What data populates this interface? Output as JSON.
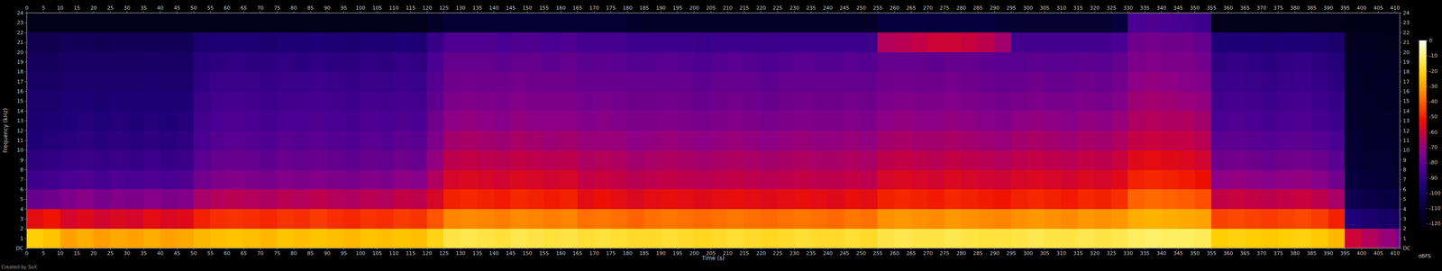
{
  "chart_data": {
    "type": "heatmap",
    "x_label": "Time (s)",
    "y_label": "Frequency (kHz)",
    "footer": "Created by SoX",
    "xlim": [
      0,
      411.5
    ],
    "ylim": [
      0,
      24
    ],
    "xticks": [
      0,
      5,
      10,
      15,
      20,
      25,
      30,
      35,
      40,
      45,
      50,
      55,
      60,
      65,
      70,
      75,
      80,
      85,
      90,
      95,
      100,
      105,
      110,
      115,
      120,
      125,
      130,
      135,
      140,
      145,
      150,
      155,
      160,
      165,
      170,
      175,
      180,
      185,
      190,
      195,
      200,
      205,
      210,
      215,
      220,
      225,
      230,
      235,
      240,
      245,
      250,
      255,
      260,
      265,
      270,
      275,
      280,
      285,
      290,
      295,
      300,
      305,
      310,
      315,
      320,
      325,
      330,
      335,
      340,
      345,
      350,
      355,
      360,
      365,
      370,
      375,
      380,
      385,
      390,
      395,
      400,
      405,
      410
    ],
    "yticks": [
      {
        "value": 0,
        "label": "DC"
      },
      1,
      2,
      3,
      4,
      5,
      6,
      7,
      8,
      9,
      10,
      11,
      12,
      13,
      14,
      15,
      16,
      17,
      18,
      19,
      20,
      21,
      22,
      23,
      24
    ],
    "grid": false,
    "x_edges": [
      0,
      5,
      10,
      15,
      20,
      25,
      30,
      35,
      40,
      45,
      50,
      55,
      60,
      65,
      70,
      75,
      80,
      85,
      90,
      95,
      100,
      105,
      110,
      115,
      120,
      125,
      130,
      135,
      140,
      145,
      150,
      155,
      160,
      165,
      170,
      175,
      180,
      185,
      190,
      195,
      200,
      205,
      210,
      215,
      220,
      225,
      230,
      235,
      240,
      245,
      250,
      255,
      260,
      265,
      270,
      275,
      280,
      285,
      290,
      295,
      300,
      305,
      310,
      315,
      320,
      325,
      330,
      335,
      340,
      345,
      350,
      355,
      360,
      365,
      370,
      375,
      380,
      385,
      390,
      395,
      400,
      405,
      410,
      415
    ],
    "y_edges": [
      0,
      2,
      4,
      6,
      8,
      10,
      12,
      14,
      16,
      18,
      20,
      22,
      24
    ],
    "cells": [
      [
        -22,
        -55,
        -80,
        -88,
        -92,
        -95,
        -97,
        -98,
        -100,
        -102,
        -105,
        -118
      ],
      [
        -24,
        -52,
        -78,
        -87,
        -91,
        -94,
        -96,
        -98,
        -100,
        -102,
        -105,
        -118
      ],
      [
        -30,
        -58,
        -75,
        -85,
        -90,
        -93,
        -95,
        -96,
        -98,
        -100,
        -103,
        -118
      ],
      [
        -28,
        -56,
        -73,
        -84,
        -89,
        -92,
        -94,
        -96,
        -98,
        -100,
        -103,
        -118
      ],
      [
        -31,
        -59,
        -76,
        -86,
        -90,
        -93,
        -95,
        -97,
        -98,
        -100,
        -104,
        -118
      ],
      [
        -29,
        -57,
        -74,
        -84,
        -89,
        -92,
        -94,
        -96,
        -98,
        -100,
        -103,
        -118
      ],
      [
        -30,
        -58,
        -75,
        -85,
        -90,
        -93,
        -95,
        -96,
        -98,
        -100,
        -103,
        -118
      ],
      [
        -28,
        -55,
        -73,
        -84,
        -88,
        -92,
        -94,
        -96,
        -97,
        -99,
        -103,
        -118
      ],
      [
        -30,
        -57,
        -75,
        -85,
        -90,
        -93,
        -95,
        -96,
        -98,
        -100,
        -103,
        -118
      ],
      [
        -29,
        -56,
        -74,
        -84,
        -89,
        -92,
        -94,
        -96,
        -98,
        -100,
        -103,
        -118
      ],
      [
        -26,
        -50,
        -67,
        -77,
        -82,
        -85,
        -87,
        -89,
        -91,
        -93,
        -97,
        -118
      ],
      [
        -25,
        -48,
        -65,
        -75,
        -80,
        -83,
        -85,
        -87,
        -89,
        -92,
        -96,
        -118
      ],
      [
        -24,
        -47,
        -64,
        -74,
        -79,
        -82,
        -84,
        -86,
        -89,
        -91,
        -96,
        -118
      ],
      [
        -25,
        -48,
        -65,
        -75,
        -80,
        -83,
        -85,
        -87,
        -89,
        -92,
        -96,
        -118
      ],
      [
        -26,
        -49,
        -66,
        -76,
        -81,
        -84,
        -86,
        -88,
        -90,
        -92,
        -97,
        -118
      ],
      [
        -24,
        -47,
        -64,
        -74,
        -79,
        -82,
        -85,
        -87,
        -89,
        -91,
        -96,
        -118
      ],
      [
        -25,
        -48,
        -65,
        -75,
        -80,
        -83,
        -85,
        -87,
        -89,
        -92,
        -96,
        -118
      ],
      [
        -24,
        -46,
        -63,
        -74,
        -79,
        -82,
        -84,
        -86,
        -88,
        -91,
        -95,
        -118
      ],
      [
        -25,
        -48,
        -65,
        -75,
        -80,
        -83,
        -85,
        -87,
        -89,
        -92,
        -96,
        -118
      ],
      [
        -26,
        -49,
        -66,
        -76,
        -81,
        -84,
        -86,
        -88,
        -90,
        -92,
        -97,
        -118
      ],
      [
        -24,
        -47,
        -64,
        -74,
        -79,
        -82,
        -84,
        -86,
        -89,
        -91,
        -96,
        -118
      ],
      [
        -25,
        -48,
        -65,
        -75,
        -80,
        -83,
        -85,
        -87,
        -89,
        -92,
        -96,
        -118
      ],
      [
        -24,
        -46,
        -62,
        -72,
        -78,
        -81,
        -84,
        -86,
        -88,
        -90,
        -95,
        -118
      ],
      [
        -25,
        -47,
        -63,
        -73,
        -79,
        -82,
        -85,
        -87,
        -89,
        -91,
        -96,
        -118
      ],
      [
        -20,
        -42,
        -58,
        -66,
        -71,
        -75,
        -78,
        -81,
        -83,
        -85,
        -90,
        -115
      ],
      [
        -15,
        -35,
        -50,
        -58,
        -63,
        -68,
        -72,
        -75,
        -78,
        -80,
        -84,
        -112
      ],
      [
        -14,
        -34,
        -49,
        -57,
        -62,
        -67,
        -71,
        -74,
        -77,
        -80,
        -84,
        -112
      ],
      [
        -15,
        -35,
        -50,
        -58,
        -63,
        -68,
        -72,
        -75,
        -78,
        -80,
        -84,
        -112
      ],
      [
        -16,
        -36,
        -51,
        -59,
        -64,
        -69,
        -73,
        -76,
        -78,
        -81,
        -85,
        -112
      ],
      [
        -14,
        -34,
        -49,
        -57,
        -62,
        -67,
        -71,
        -74,
        -77,
        -80,
        -84,
        -112
      ],
      [
        -15,
        -35,
        -50,
        -58,
        -63,
        -68,
        -72,
        -75,
        -78,
        -80,
        -84,
        -112
      ],
      [
        -16,
        -36,
        -51,
        -59,
        -64,
        -69,
        -72,
        -75,
        -78,
        -81,
        -85,
        -112
      ],
      [
        -15,
        -35,
        -50,
        -58,
        -63,
        -68,
        -72,
        -75,
        -78,
        -80,
        -84,
        -112
      ],
      [
        -17,
        -38,
        -55,
        -62,
        -66,
        -70,
        -74,
        -77,
        -79,
        -82,
        -86,
        -112
      ],
      [
        -16,
        -37,
        -53,
        -61,
        -65,
        -70,
        -73,
        -76,
        -79,
        -81,
        -86,
        -112
      ],
      [
        -17,
        -38,
        -55,
        -62,
        -66,
        -70,
        -74,
        -77,
        -79,
        -82,
        -86,
        -112
      ],
      [
        -18,
        -40,
        -57,
        -64,
        -68,
        -72,
        -75,
        -78,
        -80,
        -83,
        -88,
        -114
      ],
      [
        -18,
        -38,
        -55,
        -63,
        -67,
        -71,
        -75,
        -78,
        -80,
        -83,
        -88,
        -115
      ],
      [
        -17,
        -37,
        -54,
        -62,
        -66,
        -70,
        -74,
        -77,
        -80,
        -82,
        -88,
        -115
      ],
      [
        -18,
        -38,
        -55,
        -63,
        -67,
        -71,
        -75,
        -78,
        -80,
        -83,
        -88,
        -115
      ],
      [
        -19,
        -39,
        -56,
        -64,
        -68,
        -72,
        -76,
        -79,
        -81,
        -84,
        -89,
        -115
      ],
      [
        -18,
        -38,
        -55,
        -63,
        -67,
        -71,
        -75,
        -78,
        -80,
        -83,
        -88,
        -115
      ],
      [
        -17,
        -37,
        -54,
        -62,
        -66,
        -70,
        -74,
        -77,
        -80,
        -82,
        -88,
        -115
      ],
      [
        -18,
        -38,
        -55,
        -63,
        -67,
        -71,
        -75,
        -78,
        -80,
        -83,
        -88,
        -115
      ],
      [
        -19,
        -39,
        -56,
        -64,
        -68,
        -72,
        -76,
        -79,
        -81,
        -84,
        -89,
        -115
      ],
      [
        -18,
        -38,
        -55,
        -63,
        -67,
        -71,
        -75,
        -78,
        -80,
        -83,
        -88,
        -115
      ],
      [
        -17,
        -37,
        -54,
        -62,
        -66,
        -70,
        -74,
        -77,
        -80,
        -82,
        -88,
        -115
      ],
      [
        -18,
        -38,
        -55,
        -63,
        -67,
        -71,
        -75,
        -78,
        -80,
        -83,
        -88,
        -115
      ],
      [
        -18,
        -39,
        -56,
        -63,
        -67,
        -71,
        -75,
        -78,
        -80,
        -83,
        -88,
        -115
      ],
      [
        -17,
        -37,
        -54,
        -62,
        -66,
        -70,
        -74,
        -77,
        -80,
        -82,
        -88,
        -115
      ],
      [
        -18,
        -38,
        -55,
        -63,
        -67,
        -71,
        -75,
        -78,
        -80,
        -83,
        -88,
        -115
      ],
      [
        -15,
        -33,
        -50,
        -58,
        -63,
        -68,
        -72,
        -75,
        -78,
        -80,
        -65,
        -110
      ],
      [
        -14,
        -32,
        -49,
        -57,
        -62,
        -67,
        -71,
        -74,
        -77,
        -80,
        -64,
        -110
      ],
      [
        -15,
        -33,
        -50,
        -58,
        -63,
        -68,
        -72,
        -75,
        -78,
        -80,
        -62,
        -110
      ],
      [
        -15,
        -34,
        -51,
        -59,
        -64,
        -68,
        -72,
        -75,
        -78,
        -81,
        -60,
        -110
      ],
      [
        -14,
        -32,
        -49,
        -57,
        -62,
        -67,
        -71,
        -74,
        -77,
        -80,
        -60,
        -110
      ],
      [
        -15,
        -33,
        -50,
        -58,
        -63,
        -68,
        -72,
        -75,
        -78,
        -80,
        -61,
        -110
      ],
      [
        -16,
        -34,
        -51,
        -59,
        -64,
        -69,
        -73,
        -76,
        -79,
        -81,
        -63,
        -110
      ],
      [
        -16,
        -35,
        -52,
        -60,
        -65,
        -70,
        -74,
        -77,
        -80,
        -82,
        -68,
        -112
      ],
      [
        -15,
        -33,
        -50,
        -58,
        -63,
        -68,
        -72,
        -76,
        -79,
        -82,
        -87,
        -113
      ],
      [
        -14,
        -32,
        -49,
        -57,
        -62,
        -67,
        -71,
        -75,
        -78,
        -81,
        -87,
        -113
      ],
      [
        -15,
        -33,
        -50,
        -58,
        -63,
        -68,
        -72,
        -76,
        -79,
        -82,
        -87,
        -113
      ],
      [
        -15,
        -34,
        -51,
        -59,
        -64,
        -69,
        -73,
        -76,
        -79,
        -82,
        -87,
        -113
      ],
      [
        -14,
        -32,
        -49,
        -57,
        -62,
        -67,
        -71,
        -75,
        -78,
        -81,
        -87,
        -113
      ],
      [
        -15,
        -33,
        -50,
        -58,
        -63,
        -68,
        -72,
        -76,
        -79,
        -82,
        -87,
        -113
      ],
      [
        -14,
        -32,
        -48,
        -56,
        -61,
        -66,
        -70,
        -74,
        -77,
        -80,
        -85,
        -110
      ],
      [
        -12,
        -28,
        -40,
        -50,
        -56,
        -62,
        -66,
        -69,
        -72,
        -75,
        -78,
        -85
      ],
      [
        -11,
        -27,
        -39,
        -49,
        -55,
        -61,
        -65,
        -68,
        -71,
        -74,
        -77,
        -84
      ],
      [
        -12,
        -28,
        -40,
        -50,
        -56,
        -62,
        -66,
        -69,
        -72,
        -75,
        -78,
        -85
      ],
      [
        -12,
        -29,
        -41,
        -51,
        -57,
        -62,
        -66,
        -70,
        -73,
        -75,
        -78,
        -86
      ],
      [
        -13,
        -30,
        -43,
        -53,
        -59,
        -64,
        -68,
        -71,
        -74,
        -77,
        -80,
        -88
      ],
      [
        -22,
        -45,
        -62,
        -72,
        -78,
        -82,
        -85,
        -87,
        -89,
        -91,
        -95,
        -118
      ],
      [
        -21,
        -44,
        -61,
        -71,
        -77,
        -81,
        -84,
        -86,
        -88,
        -90,
        -95,
        -118
      ],
      [
        -22,
        -45,
        -62,
        -72,
        -78,
        -82,
        -85,
        -87,
        -89,
        -91,
        -95,
        -118
      ],
      [
        -23,
        -46,
        -63,
        -73,
        -79,
        -83,
        -86,
        -88,
        -90,
        -92,
        -96,
        -118
      ],
      [
        -22,
        -45,
        -62,
        -72,
        -78,
        -82,
        -85,
        -87,
        -89,
        -91,
        -95,
        -118
      ],
      [
        -21,
        -44,
        -61,
        -71,
        -77,
        -81,
        -84,
        -86,
        -88,
        -90,
        -95,
        -118
      ],
      [
        -23,
        -46,
        -63,
        -73,
        -79,
        -83,
        -86,
        -88,
        -90,
        -92,
        -96,
        -118
      ],
      [
        -26,
        -50,
        -67,
        -77,
        -82,
        -85,
        -88,
        -90,
        -92,
        -94,
        -98,
        -118
      ],
      [
        -60,
        -95,
        -105,
        -110,
        -112,
        -113,
        -114,
        -115,
        -115,
        -116,
        -117,
        -120
      ],
      [
        -65,
        -98,
        -107,
        -111,
        -113,
        -114,
        -115,
        -115,
        -116,
        -116,
        -117,
        -120
      ],
      [
        -70,
        -100,
        -108,
        -112,
        -113,
        -114,
        -115,
        -116,
        -116,
        -117,
        -118,
        -120
      ],
      [
        -75,
        -102,
        -110,
        -113,
        -114,
        -115,
        -116,
        -116,
        -117,
        -117,
        -118,
        -120
      ]
    ],
    "colorbar": {
      "label": "dBFS",
      "lim": [
        -125,
        0
      ],
      "ticks": [
        0,
        -10,
        -20,
        -30,
        -40,
        -50,
        -60,
        -70,
        -80,
        -90,
        -100,
        -110,
        -120
      ]
    }
  }
}
